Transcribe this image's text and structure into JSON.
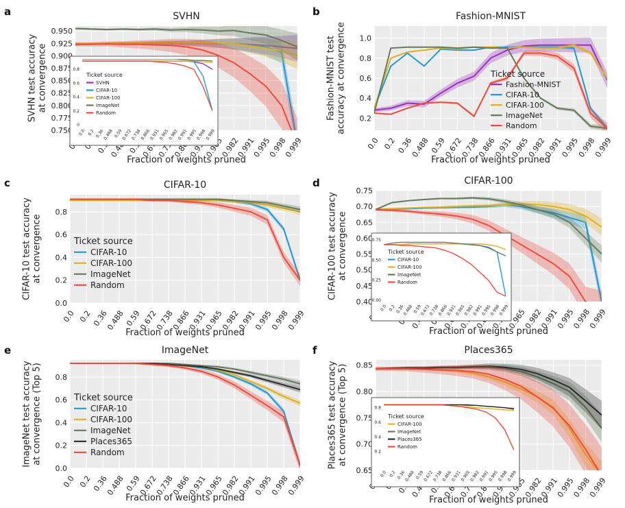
{
  "x_categories": [
    "0.0",
    "0.2",
    "0.36",
    "0.488",
    "0.59",
    "0.672",
    "0.738",
    "0.866",
    "0.931",
    "0.965",
    "0.982",
    "0.991",
    "0.995",
    "0.998",
    "0.999"
  ],
  "colors": {
    "SVHN": "#9b2fbf",
    "Fashion-MNIST": "#9b2fbf",
    "CIFAR-10": "#1f9ad6",
    "CIFAR-100": "#e0b020",
    "ImageNet": "#647a5a",
    "Places365": "#2b2b2b",
    "Random": "#f04a3a"
  },
  "chart_data": [
    {
      "id": "svhn",
      "panel_label": "a",
      "type": "line",
      "title": "SVHN",
      "xlabel": "Fraction of weights pruned",
      "ylabel": [
        "SVHN test accuracy",
        "at convergence"
      ],
      "ylim": [
        0.75,
        0.96
      ],
      "yticks": [
        "0.750",
        "0.775",
        "0.800",
        "0.825",
        "0.850",
        "0.875",
        "0.900",
        "0.925",
        "0.950"
      ],
      "legend_title": "Ticket source",
      "legend_position": "inset",
      "grid": true,
      "series": [
        {
          "name": "SVHN",
          "values": [
            0.923,
            0.924,
            0.924,
            0.924,
            0.925,
            0.925,
            0.925,
            0.925,
            0.925,
            0.925,
            0.924,
            0.923,
            0.921,
            0.918,
            0.915
          ]
        },
        {
          "name": "CIFAR-10",
          "values": [
            0.923,
            0.924,
            0.925,
            0.926,
            0.926,
            0.927,
            0.927,
            0.926,
            0.926,
            0.925,
            0.924,
            0.921,
            0.918,
            0.907,
            0.72
          ]
        },
        {
          "name": "CIFAR-100",
          "values": [
            0.925,
            0.925,
            0.925,
            0.926,
            0.926,
            0.926,
            0.926,
            0.926,
            0.926,
            0.926,
            0.924,
            0.92,
            0.915,
            0.91,
            0.9
          ]
        },
        {
          "name": "ImageNet",
          "values": [
            0.955,
            0.954,
            0.953,
            0.954,
            0.953,
            0.954,
            0.952,
            0.953,
            0.952,
            0.95,
            0.951,
            0.946,
            0.942,
            0.931,
            0.918
          ]
        },
        {
          "name": "Random",
          "values": [
            0.923,
            0.923,
            0.924,
            0.923,
            0.923,
            0.922,
            0.921,
            0.918,
            0.912,
            0.901,
            0.886,
            0.864,
            0.839,
            0.8,
            0.72
          ]
        }
      ],
      "inset": {
        "legend_title": "Ticket source",
        "yticks": [
          "0",
          "0.2",
          "0.4",
          "0.6",
          "0.8"
        ],
        "ylim": [
          0,
          0.95
        ],
        "series": [
          {
            "name": "SVHN",
            "values": [
              0.92,
              0.92,
              0.92,
              0.92,
              0.92,
              0.92,
              0.92,
              0.92,
              0.92,
              0.92,
              0.92,
              0.92,
              0.91,
              0.88,
              0.8
            ]
          },
          {
            "name": "CIFAR-10",
            "values": [
              0.92,
              0.92,
              0.92,
              0.92,
              0.92,
              0.92,
              0.92,
              0.92,
              0.92,
              0.92,
              0.92,
              0.92,
              0.91,
              0.7,
              0.2
            ]
          },
          {
            "name": "CIFAR-100",
            "values": [
              0.92,
              0.92,
              0.92,
              0.92,
              0.92,
              0.92,
              0.92,
              0.92,
              0.92,
              0.92,
              0.92,
              0.92,
              0.92,
              0.91,
              0.9
            ]
          },
          {
            "name": "ImageNet",
            "values": [
              0.95,
              0.95,
              0.95,
              0.95,
              0.95,
              0.95,
              0.95,
              0.95,
              0.95,
              0.95,
              0.95,
              0.94,
              0.93,
              0.93,
              0.92
            ]
          },
          {
            "name": "Random",
            "values": [
              0.92,
              0.92,
              0.92,
              0.92,
              0.92,
              0.92,
              0.92,
              0.92,
              0.91,
              0.9,
              0.88,
              0.85,
              0.8,
              0.55,
              0.2
            ]
          }
        ]
      }
    },
    {
      "id": "fashion",
      "panel_label": "b",
      "type": "line",
      "title": "Fashion-MNIST",
      "xlabel": "Fraction of weights pruned",
      "ylabel": [
        "Fashion-MNIST test",
        "accuracy at convergence"
      ],
      "ylim": [
        0.08,
        1.12
      ],
      "yticks": [
        "0.2",
        "0.4",
        "0.6",
        "0.8",
        "1.0"
      ],
      "legend_title": "Ticket source",
      "legend_position": "center-right",
      "grid": true,
      "series": [
        {
          "name": "Fashion-MNIST",
          "values": [
            0.28,
            0.3,
            0.35,
            0.34,
            0.45,
            0.55,
            0.62,
            0.8,
            0.88,
            0.92,
            0.93,
            0.93,
            0.93,
            0.93,
            0.58
          ]
        },
        {
          "name": "CIFAR-10",
          "values": [
            0.3,
            0.72,
            0.85,
            0.72,
            0.89,
            0.88,
            0.88,
            0.91,
            0.91,
            0.91,
            0.91,
            0.91,
            0.9,
            0.3,
            0.1
          ]
        },
        {
          "name": "CIFAR-100",
          "values": [
            0.3,
            0.8,
            0.86,
            0.88,
            0.9,
            0.89,
            0.91,
            0.91,
            0.9,
            0.91,
            0.9,
            0.9,
            0.93,
            0.85,
            0.6
          ]
        },
        {
          "name": "ImageNet",
          "values": [
            0.25,
            0.9,
            0.91,
            0.91,
            0.91,
            0.9,
            0.91,
            0.9,
            0.9,
            0.6,
            0.4,
            0.3,
            0.28,
            0.12,
            0.1
          ]
        },
        {
          "name": "Random",
          "values": [
            0.25,
            0.24,
            0.3,
            0.35,
            0.36,
            0.35,
            0.22,
            0.55,
            0.6,
            0.85,
            0.85,
            0.82,
            0.7,
            0.25,
            0.1
          ]
        }
      ]
    },
    {
      "id": "cifar10",
      "panel_label": "c",
      "type": "line",
      "title": "CIFAR-10",
      "xlabel": "Fraction of weights pruned",
      "ylabel": [
        "CIFAR-10 test accuracy",
        "at convergence"
      ],
      "ylim": [
        0,
        0.95
      ],
      "yticks": [
        "0.0",
        "0.2",
        "0.4",
        "0.6",
        "0.8"
      ],
      "legend_title": "Ticket source",
      "legend_position": "lower-left",
      "grid": true,
      "series": [
        {
          "name": "CIFAR-10",
          "values": [
            0.91,
            0.91,
            0.91,
            0.91,
            0.91,
            0.91,
            0.91,
            0.91,
            0.91,
            0.9,
            0.89,
            0.87,
            0.82,
            0.65,
            0.2
          ]
        },
        {
          "name": "CIFAR-100",
          "values": [
            0.9,
            0.9,
            0.9,
            0.9,
            0.9,
            0.9,
            0.9,
            0.9,
            0.9,
            0.9,
            0.89,
            0.88,
            0.86,
            0.83,
            0.8
          ]
        },
        {
          "name": "ImageNet",
          "values": [
            0.91,
            0.91,
            0.91,
            0.91,
            0.91,
            0.91,
            0.91,
            0.91,
            0.91,
            0.91,
            0.9,
            0.89,
            0.88,
            0.85,
            0.82
          ]
        },
        {
          "name": "Random",
          "values": [
            0.91,
            0.91,
            0.91,
            0.91,
            0.91,
            0.9,
            0.9,
            0.89,
            0.88,
            0.86,
            0.83,
            0.8,
            0.73,
            0.4,
            0.2
          ]
        }
      ]
    },
    {
      "id": "cifar100",
      "panel_label": "d",
      "type": "line",
      "title": "CIFAR-100",
      "xlabel": "Fraction of weights pruned",
      "ylabel": [
        "CIFAR-100 test accuracy",
        "at convergence"
      ],
      "ylim": [
        0.4,
        0.75
      ],
      "yticks": [
        "0.40",
        "0.45",
        "0.50",
        "0.55",
        "0.60",
        "0.65",
        "0.70",
        "0.75"
      ],
      "legend_title": "Ticket source",
      "legend_position": "inset",
      "grid": true,
      "series": [
        {
          "name": "CIFAR-10",
          "values": [
            0.69,
            0.692,
            0.693,
            0.695,
            0.696,
            0.697,
            0.698,
            0.7,
            0.705,
            0.7,
            0.69,
            0.68,
            0.665,
            0.65,
            0.4
          ]
        },
        {
          "name": "CIFAR-100",
          "values": [
            0.69,
            0.693,
            0.695,
            0.697,
            0.698,
            0.7,
            0.702,
            0.703,
            0.705,
            0.708,
            0.706,
            0.7,
            0.69,
            0.67,
            0.635
          ]
        },
        {
          "name": "ImageNet",
          "values": [
            0.69,
            0.712,
            0.718,
            0.722,
            0.725,
            0.725,
            0.727,
            0.724,
            0.716,
            0.705,
            0.69,
            0.676,
            0.65,
            0.6,
            0.55
          ]
        },
        {
          "name": "Random",
          "values": [
            0.69,
            0.688,
            0.685,
            0.68,
            0.676,
            0.67,
            0.66,
            0.64,
            0.61,
            0.58,
            0.55,
            0.52,
            0.48,
            0.4,
            0.38
          ]
        }
      ],
      "inset": {
        "legend_title": "Ticket source",
        "yticks": [
          "0.00",
          "0.25",
          "0.50",
          "0.75"
        ],
        "ylim": [
          0,
          0.8
        ],
        "series": [
          {
            "name": "CIFAR-10",
            "values": [
              0.69,
              0.69,
              0.69,
              0.7,
              0.7,
              0.7,
              0.7,
              0.7,
              0.7,
              0.7,
              0.69,
              0.68,
              0.66,
              0.6,
              0.05
            ]
          },
          {
            "name": "CIFAR-100",
            "values": [
              0.69,
              0.69,
              0.69,
              0.7,
              0.7,
              0.7,
              0.7,
              0.7,
              0.7,
              0.7,
              0.7,
              0.7,
              0.69,
              0.67,
              0.63
            ]
          },
          {
            "name": "ImageNet",
            "values": [
              0.69,
              0.71,
              0.72,
              0.72,
              0.72,
              0.72,
              0.72,
              0.72,
              0.71,
              0.7,
              0.69,
              0.68,
              0.65,
              0.6,
              0.55
            ]
          },
          {
            "name": "Random",
            "values": [
              0.69,
              0.69,
              0.68,
              0.68,
              0.67,
              0.66,
              0.65,
              0.62,
              0.58,
              0.52,
              0.45,
              0.35,
              0.25,
              0.1,
              0.05
            ]
          }
        ]
      }
    },
    {
      "id": "imagenet",
      "panel_label": "e",
      "type": "line",
      "title": "ImageNet",
      "xlabel": "Fraction of weights pruned",
      "ylabel": [
        "ImageNet test accuracy",
        "at convergence (Top 5)"
      ],
      "ylim": [
        0,
        0.95
      ],
      "yticks": [
        "0.0",
        "0.2",
        "0.4",
        "0.6",
        "0.8"
      ],
      "legend_title": "Ticket source",
      "legend_position": "lower-left",
      "grid": true,
      "series": [
        {
          "name": "CIFAR-10",
          "values": [
            0.92,
            0.92,
            0.92,
            0.92,
            0.92,
            0.92,
            0.91,
            0.9,
            0.88,
            0.85,
            0.8,
            0.74,
            0.66,
            0.5,
            0.02
          ]
        },
        {
          "name": "CIFAR-100",
          "values": [
            0.92,
            0.92,
            0.92,
            0.92,
            0.92,
            0.92,
            0.91,
            0.9,
            0.89,
            0.86,
            0.82,
            0.76,
            0.7,
            0.63,
            0.57
          ]
        },
        {
          "name": "ImageNet",
          "values": [
            0.92,
            0.92,
            0.92,
            0.92,
            0.92,
            0.92,
            0.92,
            0.91,
            0.9,
            0.89,
            0.87,
            0.84,
            0.81,
            0.78,
            0.74
          ]
        },
        {
          "name": "Places365",
          "values": [
            0.92,
            0.92,
            0.92,
            0.92,
            0.92,
            0.92,
            0.91,
            0.9,
            0.89,
            0.87,
            0.84,
            0.81,
            0.77,
            0.73,
            0.69
          ]
        },
        {
          "name": "Random",
          "values": [
            0.92,
            0.92,
            0.92,
            0.92,
            0.92,
            0.91,
            0.9,
            0.88,
            0.85,
            0.8,
            0.73,
            0.64,
            0.55,
            0.45,
            0.02
          ]
        }
      ]
    },
    {
      "id": "places365",
      "panel_label": "f",
      "type": "line",
      "title": "Places365",
      "xlabel": "Fraction of weights pruned",
      "ylabel": [
        "Places365 test accuracy",
        "at convergence (Top 5)"
      ],
      "ylim": [
        0.65,
        0.86
      ],
      "yticks": [
        "0.65",
        "0.70",
        "0.75",
        "0.80",
        "0.85"
      ],
      "legend_title": "Ticket source",
      "legend_position": "inset",
      "grid": true,
      "series": [
        {
          "name": "CIFAR-100",
          "values": [
            0.843,
            0.843,
            0.843,
            0.842,
            0.841,
            0.839,
            0.835,
            0.828,
            0.818,
            0.805,
            0.79,
            0.77,
            0.73,
            0.68,
            0.64
          ]
        },
        {
          "name": "ImageNet",
          "values": [
            0.843,
            0.844,
            0.844,
            0.844,
            0.845,
            0.845,
            0.846,
            0.846,
            0.844,
            0.838,
            0.828,
            0.815,
            0.8,
            0.77,
            0.73
          ]
        },
        {
          "name": "Places365",
          "values": [
            0.843,
            0.844,
            0.845,
            0.845,
            0.846,
            0.846,
            0.847,
            0.848,
            0.846,
            0.842,
            0.834,
            0.822,
            0.808,
            0.782,
            0.755
          ]
        },
        {
          "name": "Random",
          "values": [
            0.843,
            0.843,
            0.843,
            0.842,
            0.841,
            0.84,
            0.838,
            0.833,
            0.823,
            0.81,
            0.79,
            0.768,
            0.735,
            0.69,
            0.64
          ]
        }
      ],
      "inset": {
        "legend_title": "Ticket source",
        "yticks": [
          "0.2",
          "0.4",
          "0.6",
          "0.8"
        ],
        "ylim": [
          0,
          0.9
        ],
        "series": [
          {
            "name": "CIFAR-100",
            "values": [
              0.84,
              0.84,
              0.84,
              0.84,
              0.84,
              0.84,
              0.84,
              0.83,
              0.82,
              0.81,
              0.8,
              0.79,
              0.78,
              0.77,
              0.76
            ]
          },
          {
            "name": "ImageNet",
            "values": [
              0.84,
              0.84,
              0.84,
              0.84,
              0.84,
              0.84,
              0.84,
              0.84,
              0.84,
              0.83,
              0.83,
              0.82,
              0.81,
              0.8,
              0.79
            ]
          },
          {
            "name": "Places365",
            "values": [
              0.84,
              0.84,
              0.84,
              0.84,
              0.84,
              0.84,
              0.84,
              0.84,
              0.84,
              0.84,
              0.83,
              0.82,
              0.81,
              0.8,
              0.78
            ]
          },
          {
            "name": "Random",
            "values": [
              0.84,
              0.84,
              0.84,
              0.84,
              0.84,
              0.84,
              0.84,
              0.83,
              0.82,
              0.8,
              0.78,
              0.74,
              0.66,
              0.5,
              0.22
            ]
          }
        ]
      }
    }
  ]
}
